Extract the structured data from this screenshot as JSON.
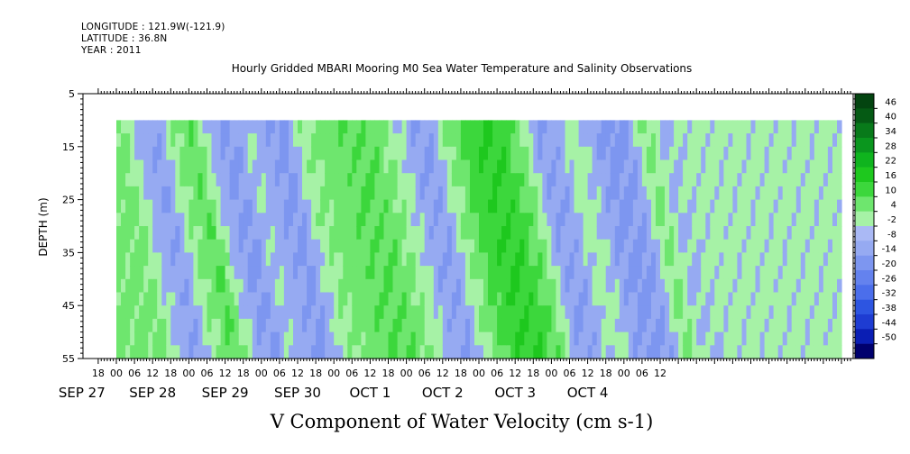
{
  "header": {
    "longitude": "LONGITUDE : 121.9W(-121.9)",
    "latitude": "LATITUDE : 36.8N",
    "year": "YEAR : 2011"
  },
  "chart_data": {
    "type": "heatmap",
    "title": "Hourly Gridded MBARI Mooring M0 Sea Water Temperature and Salinity Observations",
    "xlabel": "V Component of Water Velocity (cm s-1)",
    "ylabel": "DEPTH (m)",
    "ylim": [
      55,
      5
    ],
    "yticks": [
      5,
      15,
      25,
      35,
      45,
      55
    ],
    "data_depth_range": [
      10,
      55
    ],
    "hour_tick_labels": [
      "18",
      "00",
      "06",
      "12",
      "18",
      "00",
      "06",
      "12",
      "18",
      "00",
      "06",
      "12",
      "18",
      "00",
      "06",
      "12",
      "18",
      "00",
      "06",
      "12",
      "18",
      "00",
      "06",
      "12",
      "18",
      "00",
      "06",
      "12",
      "18",
      "00",
      "06",
      "12"
    ],
    "day_labels": [
      "SEP 27",
      "SEP 28",
      "SEP 29",
      "SEP 30",
      "OCT  1",
      "OCT  2",
      "OCT  3",
      "OCT  4"
    ],
    "colorbar": {
      "levels": [
        -50,
        -44,
        -38,
        -32,
        -26,
        -20,
        -14,
        -8,
        -2,
        4,
        10,
        16,
        22,
        28,
        34,
        40,
        46
      ],
      "colors_negative": [
        "#00006e",
        "#0a1eb4",
        "#1e3cd2",
        "#2d55e1",
        "#4b6eeb",
        "#6482ee",
        "#7d96f0",
        "#96aaf2",
        "#aab9f5"
      ],
      "colors_positive": [
        "#a6f2a6",
        "#6ee66e",
        "#3cd73c",
        "#1ec81e",
        "#0fb41e",
        "#0a961e",
        "#087a1a",
        "#055a14",
        "#034410"
      ]
    },
    "velocity_profile": {
      "x_hours": [
        0,
        6,
        12,
        18,
        24,
        30,
        36,
        42,
        48,
        54,
        60,
        66,
        72,
        78,
        84,
        90,
        96,
        102,
        108,
        114,
        120,
        126,
        132,
        138,
        144,
        150,
        156,
        162,
        168,
        174,
        180,
        186
      ],
      "v_cm_s": [
        6,
        -4,
        -8,
        4,
        10,
        -4,
        -10,
        -2,
        -6,
        -10,
        2,
        6,
        8,
        10,
        8,
        2,
        -6,
        -8,
        4,
        12,
        16,
        14,
        6,
        -8,
        -6,
        2,
        -6,
        -10,
        -8,
        6,
        -4,
        0
      ]
    }
  }
}
